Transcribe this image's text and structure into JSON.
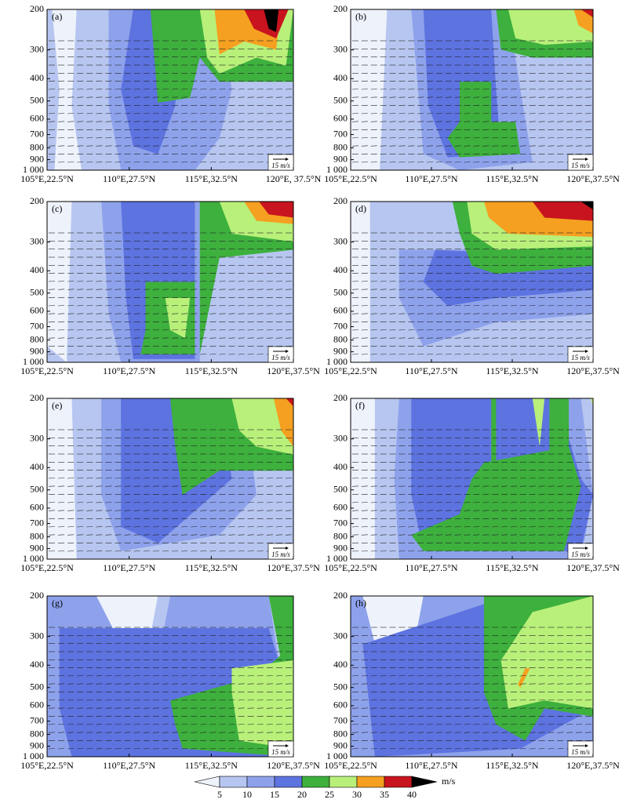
{
  "chart_data": {
    "type": "contour",
    "ylim": [
      1000,
      200
    ],
    "log_y": true,
    "yticks": [
      200,
      300,
      400,
      500,
      600,
      700,
      800,
      900,
      {
        "value": 1000,
        "label": "1 000"
      }
    ],
    "ref_vector_label": "15 m/s",
    "panels": [
      {
        "label": "(a)",
        "xticks": [
          "105°E,22.5°N",
          "110°E,27.5°N",
          "115°E,32.5°N",
          "120°E, 37.5°N"
        ]
      },
      {
        "label": "(b)",
        "xticks": [
          "105°E,22.5°N",
          "110°E,27.5°N",
          "115°E,32.5°N",
          "120°E,37.5°N"
        ]
      },
      {
        "label": "(c)",
        "xticks": [
          "105°E,22.5°N",
          "110°E,27.5°N",
          "115°E,32.5°N",
          "120°E,37.5°N"
        ]
      },
      {
        "label": "(d)",
        "xticks": [
          "105°E,22.5°N",
          "110°E,27.5°N",
          "115°E,32.5°N",
          "120°E,37.5°N"
        ]
      },
      {
        "label": "(e)",
        "xticks": [
          "105°E,22.5°N",
          "110°E,27.5°N",
          "115°E,32.5°N",
          "120°E,37.5°N"
        ]
      },
      {
        "label": "(f)",
        "xticks": [
          "105°E,22.5°N",
          "110°E,27.5°N",
          "115°E,32.5°N",
          "120°E,37.5°N"
        ]
      },
      {
        "label": "(g)",
        "xticks": [
          "105°E,22.5°N",
          "110°E,27.5°N",
          "115°E,32.5°N",
          "120°E,37.5°N"
        ]
      },
      {
        "label": "(h)",
        "xticks": [
          "105°E,22.5°N",
          "110°E,27.5°N",
          "115°E,32.5°N",
          "120°E,37.5°N"
        ]
      }
    ],
    "colorbar": {
      "levels": [
        5,
        10,
        15,
        20,
        25,
        30,
        35,
        40
      ],
      "unit": "m/s",
      "colors": [
        "#eef2fb",
        "#b7c6f0",
        "#8ea2ec",
        "#5d73e0",
        "#3db03d",
        "#b8f07a",
        "#f5a020",
        "#c8141e",
        "#000000"
      ]
    }
  }
}
